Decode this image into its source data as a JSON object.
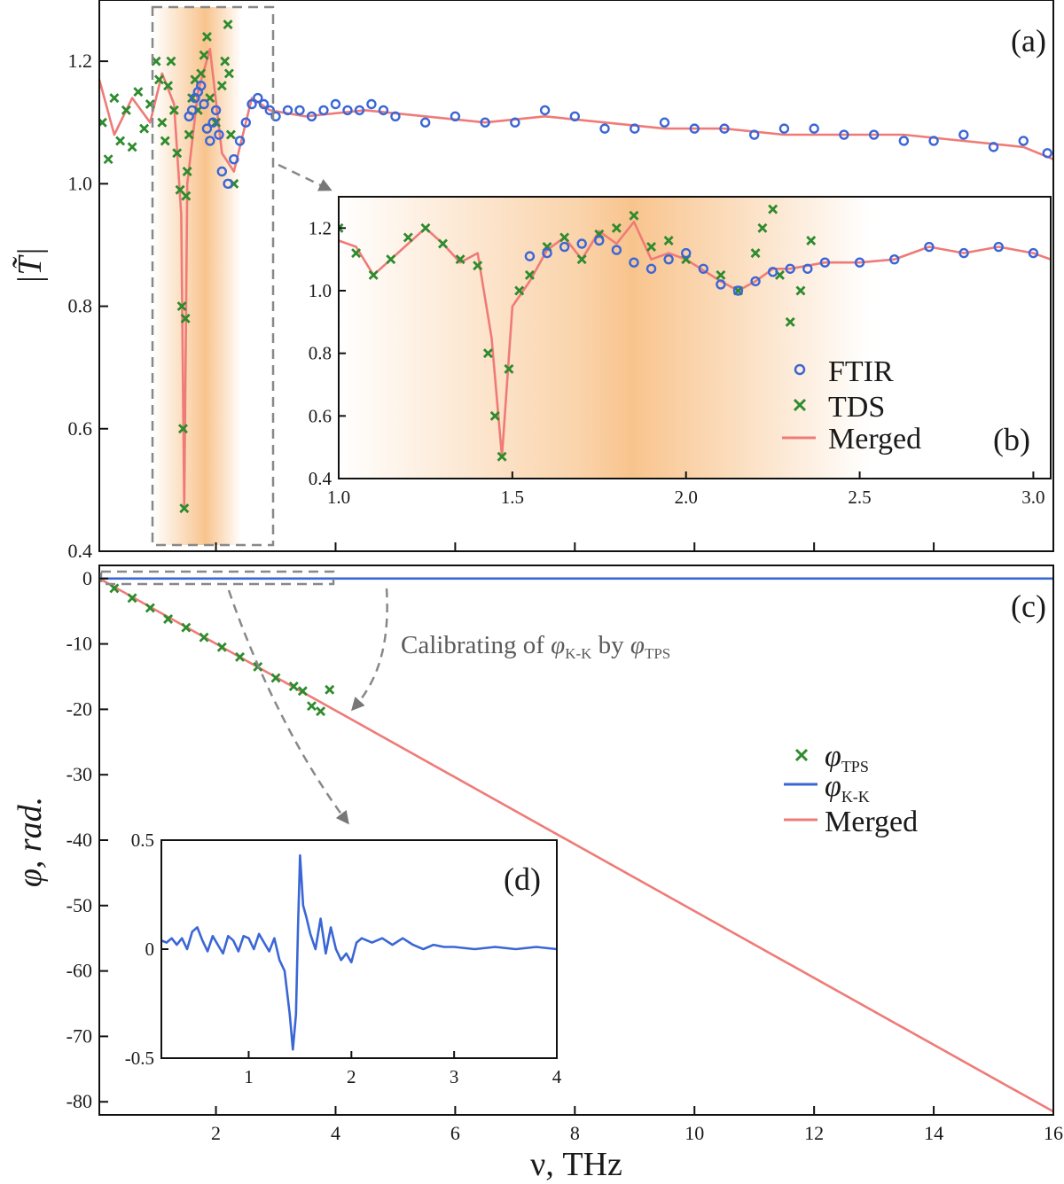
{
  "chart_data": [
    {
      "panel": "(a)",
      "type": "line",
      "ylabel": "|T̃|",
      "xlim": [
        0.05,
        16
      ],
      "ylim": [
        0.4,
        1.3
      ],
      "yticks": [
        "0.4",
        "0.6",
        "0.8",
        "1.0",
        "1.2"
      ],
      "highlight_band_thz": [
        1.0,
        2.4
      ],
      "zoom_box_thz": [
        0.95,
        3.0
      ],
      "series": [
        {
          "name": "FTIR",
          "marker": "circle",
          "color": "#3a66d6",
          "x": [
            1.55,
            1.6,
            1.65,
            1.7,
            1.75,
            1.8,
            1.85,
            1.9,
            1.95,
            2.0,
            2.05,
            2.1,
            2.2,
            2.3,
            2.4,
            2.5,
            2.6,
            2.7,
            2.8,
            2.9,
            3.0,
            3.2,
            3.4,
            3.6,
            3.8,
            4.0,
            4.2,
            4.4,
            4.6,
            4.8,
            5.0,
            5.5,
            6.0,
            6.5,
            7.0,
            7.5,
            8.0,
            8.5,
            9.0,
            9.5,
            10.0,
            10.5,
            11.0,
            11.5,
            12.0,
            12.5,
            13.0,
            13.5,
            14.0,
            14.5,
            15.0,
            15.5,
            15.9
          ],
          "y": [
            1.11,
            1.12,
            1.14,
            1.15,
            1.16,
            1.13,
            1.09,
            1.07,
            1.1,
            1.12,
            1.08,
            1.02,
            1.0,
            1.04,
            1.07,
            1.1,
            1.13,
            1.14,
            1.13,
            1.12,
            1.11,
            1.12,
            1.12,
            1.11,
            1.12,
            1.13,
            1.12,
            1.12,
            1.13,
            1.12,
            1.11,
            1.1,
            1.11,
            1.1,
            1.1,
            1.12,
            1.11,
            1.09,
            1.09,
            1.1,
            1.09,
            1.09,
            1.08,
            1.09,
            1.09,
            1.08,
            1.08,
            1.07,
            1.07,
            1.08,
            1.06,
            1.07,
            1.05
          ]
        },
        {
          "name": "TDS",
          "marker": "x",
          "color": "#2e8b2e",
          "x": [
            0.1,
            0.2,
            0.3,
            0.4,
            0.5,
            0.6,
            0.7,
            0.8,
            0.9,
            1.0,
            1.05,
            1.1,
            1.15,
            1.2,
            1.25,
            1.3,
            1.35,
            1.4,
            1.43,
            1.45,
            1.47,
            1.49,
            1.5,
            1.52,
            1.55,
            1.6,
            1.65,
            1.7,
            1.75,
            1.8,
            1.85,
            1.9,
            2.0,
            2.1,
            2.15,
            2.2,
            2.22,
            2.25,
            2.3
          ],
          "y": [
            1.1,
            1.04,
            1.14,
            1.07,
            1.12,
            1.06,
            1.15,
            1.09,
            1.13,
            1.2,
            1.17,
            1.1,
            1.07,
            1.16,
            1.2,
            1.12,
            1.05,
            0.99,
            0.8,
            0.6,
            0.47,
            0.78,
            0.98,
            1.02,
            1.08,
            1.14,
            1.17,
            1.12,
            1.18,
            1.21,
            1.24,
            1.14,
            1.1,
            1.16,
            1.2,
            1.26,
            1.18,
            1.08,
            1.0
          ]
        },
        {
          "name": "Merged",
          "marker": "line",
          "color": "#ef7b78",
          "x": [
            0.05,
            0.3,
            0.6,
            0.9,
            1.1,
            1.3,
            1.42,
            1.47,
            1.52,
            1.7,
            1.9,
            2.1,
            2.3,
            2.6,
            2.9,
            3.5,
            4.5,
            5.5,
            6.5,
            7.5,
            8.5,
            9.5,
            10.5,
            11.5,
            12.5,
            13.5,
            14.5,
            15.5,
            16.0
          ],
          "y": [
            1.17,
            1.08,
            1.14,
            1.1,
            1.18,
            1.13,
            0.95,
            0.47,
            1.0,
            1.15,
            1.22,
            1.05,
            1.02,
            1.14,
            1.12,
            1.11,
            1.12,
            1.11,
            1.1,
            1.11,
            1.1,
            1.09,
            1.09,
            1.08,
            1.08,
            1.08,
            1.07,
            1.06,
            1.04
          ]
        }
      ]
    },
    {
      "panel": "(b)",
      "type": "line",
      "xlim": [
        1.0,
        3.05
      ],
      "ylim": [
        0.4,
        1.3
      ],
      "xticks": [
        "1.0",
        "1.5",
        "2.0",
        "2.5",
        "3.0"
      ],
      "yticks": [
        "0.4",
        "0.6",
        "0.8",
        "1.0",
        "1.2"
      ],
      "legend": [
        "FTIR",
        "TDS",
        "Merged"
      ],
      "series": [
        {
          "name": "FTIR",
          "x": [
            1.55,
            1.6,
            1.65,
            1.7,
            1.75,
            1.8,
            1.85,
            1.9,
            1.95,
            2.0,
            2.05,
            2.1,
            2.15,
            2.2,
            2.25,
            2.3,
            2.35,
            2.4,
            2.5,
            2.6,
            2.7,
            2.8,
            2.9,
            3.0
          ],
          "y": [
            1.11,
            1.12,
            1.14,
            1.15,
            1.16,
            1.13,
            1.09,
            1.07,
            1.1,
            1.12,
            1.07,
            1.02,
            1.0,
            1.03,
            1.06,
            1.07,
            1.07,
            1.09,
            1.09,
            1.1,
            1.14,
            1.12,
            1.14,
            1.12
          ]
        },
        {
          "name": "TDS",
          "x": [
            1.0,
            1.05,
            1.1,
            1.15,
            1.2,
            1.25,
            1.3,
            1.35,
            1.4,
            1.43,
            1.45,
            1.47,
            1.49,
            1.52,
            1.55,
            1.6,
            1.65,
            1.7,
            1.75,
            1.8,
            1.85,
            1.9,
            1.95,
            2.0,
            2.1,
            2.15,
            2.2,
            2.22,
            2.25,
            2.27,
            2.3,
            2.33,
            2.36
          ],
          "y": [
            1.2,
            1.12,
            1.05,
            1.1,
            1.17,
            1.2,
            1.15,
            1.1,
            1.08,
            0.8,
            0.6,
            0.47,
            0.75,
            1.0,
            1.05,
            1.14,
            1.17,
            1.1,
            1.18,
            1.2,
            1.24,
            1.14,
            1.16,
            1.1,
            1.05,
            1.0,
            1.12,
            1.2,
            1.26,
            1.05,
            0.9,
            1.0,
            1.16
          ]
        },
        {
          "name": "Merged",
          "x": [
            1.0,
            1.05,
            1.1,
            1.15,
            1.2,
            1.25,
            1.3,
            1.35,
            1.4,
            1.44,
            1.47,
            1.5,
            1.55,
            1.6,
            1.65,
            1.7,
            1.75,
            1.8,
            1.85,
            1.9,
            1.95,
            2.0,
            2.1,
            2.15,
            2.2,
            2.25,
            2.3,
            2.4,
            2.5,
            2.6,
            2.7,
            2.8,
            2.9,
            3.0,
            3.05
          ],
          "y": [
            1.16,
            1.14,
            1.05,
            1.1,
            1.15,
            1.2,
            1.15,
            1.09,
            1.12,
            0.85,
            0.47,
            0.95,
            1.03,
            1.13,
            1.17,
            1.1,
            1.19,
            1.15,
            1.22,
            1.1,
            1.12,
            1.1,
            1.03,
            1.0,
            1.03,
            1.07,
            1.07,
            1.09,
            1.09,
            1.1,
            1.14,
            1.12,
            1.14,
            1.12,
            1.1
          ]
        }
      ]
    },
    {
      "panel": "(c)",
      "type": "line",
      "xlabel": "ν, THz",
      "ylabel": "φ, rad.",
      "xlim": [
        0.05,
        16
      ],
      "ylim": [
        -82,
        2
      ],
      "xticks": [
        "2",
        "4",
        "6",
        "8",
        "10",
        "12",
        "14",
        "16"
      ],
      "yticks": [
        "0",
        "-10",
        "-20",
        "-30",
        "-40",
        "-50",
        "-60",
        "-70",
        "-80"
      ],
      "annotation": {
        "text": "Calibrating of",
        "var": "φ",
        "sub1": "K-K",
        "by": "by",
        "sub2": "TPS"
      },
      "legend": [
        {
          "sym": "φ",
          "sub": "TPS"
        },
        {
          "sym": "φ",
          "sub": "K-K"
        },
        {
          "text": "Merged"
        }
      ],
      "series": [
        {
          "name": "φ_TPS",
          "marker": "x",
          "color": "#2e8b2e",
          "x": [
            0.3,
            0.6,
            0.9,
            1.2,
            1.5,
            1.8,
            2.1,
            2.4,
            2.7,
            3.0,
            3.3,
            3.45,
            3.6,
            3.75,
            3.9
          ],
          "y": [
            -1.5,
            -3,
            -4.5,
            -6.2,
            -7.5,
            -9,
            -10.5,
            -12,
            -13.5,
            -15.2,
            -16.5,
            -17.2,
            -19.5,
            -20.3,
            -17
          ]
        },
        {
          "name": "φ_K-K",
          "marker": "line",
          "color": "#3a66d6",
          "x": [
            0.05,
            16
          ],
          "y": [
            0,
            0
          ]
        },
        {
          "name": "Merged",
          "marker": "line",
          "color": "#ef7b78",
          "x": [
            0.05,
            16
          ],
          "y": [
            0,
            -81.5
          ]
        }
      ]
    },
    {
      "panel": "(d)",
      "type": "line",
      "xlim": [
        0.15,
        4
      ],
      "ylim": [
        -0.5,
        0.5
      ],
      "xticks": [
        "1",
        "2",
        "3",
        "4"
      ],
      "yticks": [
        "0.5",
        "0",
        "-0.5"
      ],
      "series": [
        {
          "name": "φ_K-K",
          "color": "#3a66d6",
          "x": [
            0.15,
            0.2,
            0.25,
            0.3,
            0.35,
            0.4,
            0.45,
            0.5,
            0.55,
            0.6,
            0.65,
            0.7,
            0.75,
            0.8,
            0.85,
            0.9,
            0.95,
            1.0,
            1.05,
            1.1,
            1.15,
            1.2,
            1.25,
            1.3,
            1.35,
            1.4,
            1.43,
            1.46,
            1.48,
            1.5,
            1.53,
            1.56,
            1.6,
            1.65,
            1.7,
            1.75,
            1.8,
            1.85,
            1.9,
            1.95,
            2.0,
            2.05,
            2.1,
            2.2,
            2.3,
            2.4,
            2.5,
            2.6,
            2.7,
            2.8,
            2.9,
            3.0,
            3.2,
            3.4,
            3.6,
            3.8,
            4.0
          ],
          "y": [
            0.04,
            0.03,
            0.05,
            0.02,
            0.05,
            0.0,
            0.08,
            0.1,
            0.04,
            -0.01,
            0.06,
            0.02,
            -0.02,
            0.06,
            0.04,
            -0.01,
            0.06,
            0.05,
            0.0,
            0.07,
            0.03,
            -0.01,
            0.05,
            -0.05,
            -0.1,
            -0.3,
            -0.46,
            -0.3,
            0.1,
            0.43,
            0.2,
            0.15,
            0.07,
            0.0,
            0.14,
            -0.02,
            0.1,
            0.0,
            -0.05,
            -0.02,
            -0.06,
            0.03,
            0.05,
            0.03,
            0.05,
            0.02,
            0.05,
            0.02,
            0.0,
            0.02,
            0.01,
            0.01,
            0.0,
            0.01,
            0.0,
            0.01,
            0.0
          ]
        }
      ]
    }
  ]
}
